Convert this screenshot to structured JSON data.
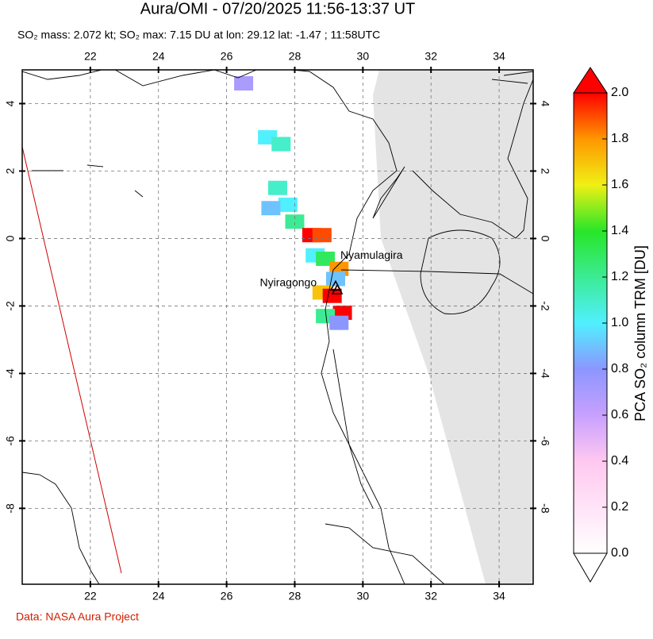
{
  "chart_data": {
    "type": "map",
    "title": "Aura/OMI - 07/20/2025 11:56-13:37 UT",
    "subtitle": "SO₂ mass: 2.072 kt; SO₂ max: 7.15 DU at lon: 29.12 lat: -1.47 ; 11:58UTC",
    "xlim": [
      20,
      35
    ],
    "ylim": [
      -10.25,
      5
    ],
    "xticks": [
      22,
      24,
      26,
      28,
      30,
      32,
      34
    ],
    "yticks": [
      4,
      2,
      0,
      -2,
      -4,
      -6,
      -8
    ],
    "grid": true,
    "colorbar": {
      "label": "PCA SO₂ column TRM [DU]",
      "lim": [
        0,
        2
      ],
      "ticks": [
        {
          "value": 0,
          "label": "0.0"
        },
        {
          "value": 0.2,
          "label": "0.2"
        },
        {
          "value": 0.4,
          "label": "0.4"
        },
        {
          "value": 0.6,
          "label": "0.6"
        },
        {
          "value": 0.8,
          "label": "0.8"
        },
        {
          "value": 1,
          "label": "1.0"
        },
        {
          "value": 1.2,
          "label": "1.2"
        },
        {
          "value": 1.4,
          "label": "1.4"
        },
        {
          "value": 1.6,
          "label": "1.6"
        },
        {
          "value": 1.8,
          "label": "1.8"
        },
        {
          "value": 2,
          "label": "2.0"
        }
      ]
    },
    "volcanoes": [
      {
        "name": "Nyamulagira",
        "lon": 29.2,
        "lat": -1.41
      },
      {
        "name": "Nyiragongo",
        "lon": 29.25,
        "lat": -1.52
      }
    ],
    "plume": {
      "lon": [
        26.5,
        27.2,
        27.6,
        27.5,
        27.8,
        27.3,
        28.0,
        28.5,
        28.8,
        28.6,
        28.9,
        29.3,
        29.2,
        28.8,
        29.1,
        29.4,
        28.9,
        29.3
      ],
      "lat": [
        4.6,
        3.0,
        2.8,
        1.5,
        1.0,
        0.9,
        0.5,
        0.1,
        0.1,
        -0.5,
        -0.6,
        -0.9,
        -1.2,
        -1.6,
        -1.7,
        -2.2,
        -2.3,
        -2.5
      ],
      "values": [
        0.7,
        1.0,
        1.1,
        1.1,
        1.0,
        0.9,
        1.2,
        2.0,
        1.9,
        1.0,
        1.3,
        1.8,
        0.9,
        1.7,
        2.0,
        2.0,
        1.2,
        0.8
      ]
    },
    "source": "Data: NASA Aura Project"
  }
}
